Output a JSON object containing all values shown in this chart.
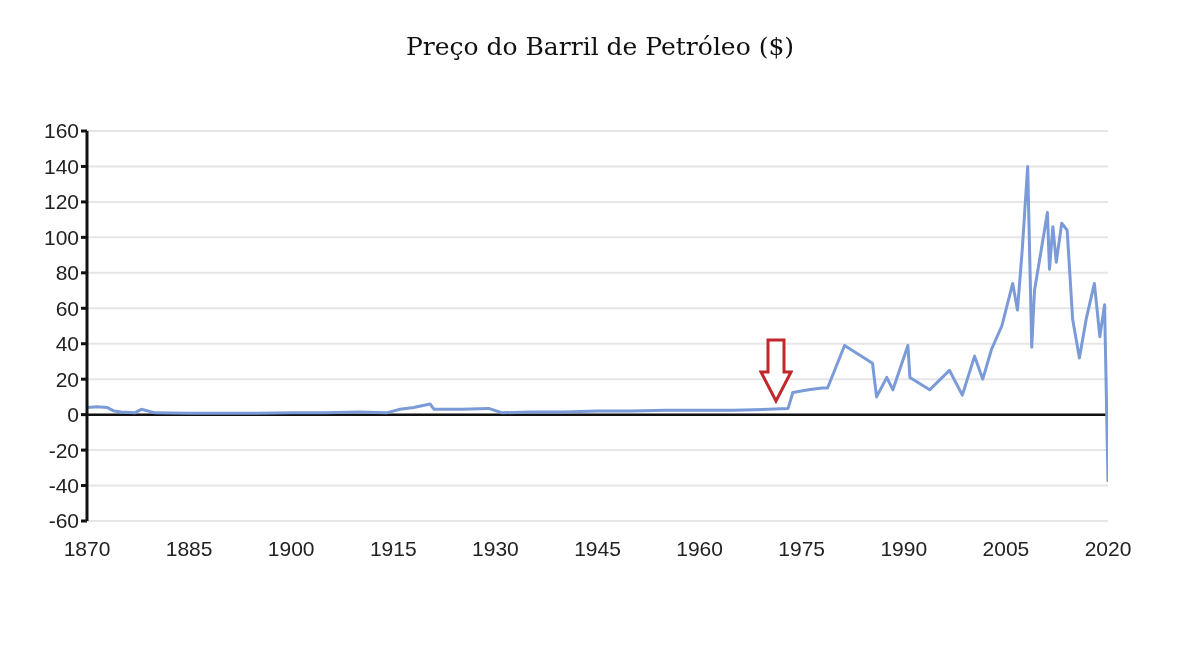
{
  "chart_data": {
    "type": "line",
    "title": "Preço do Barril de Petróleo ($)",
    "series": [
      {
        "color": "#7b9bd8",
        "x": [
          1870,
          1871.5,
          1873,
          1874,
          1875,
          1877,
          1878,
          1880,
          1885,
          1890,
          1895,
          1900,
          1905,
          1910,
          1914,
          1916,
          1918,
          1920.4,
          1921,
          1925,
          1929,
          1931,
          1935,
          1940,
          1945,
          1950,
          1955,
          1960,
          1965,
          1970,
          1973,
          1973.7,
          1976,
          1978,
          1978.8,
          1981.3,
          1985.4,
          1986,
          1987.5,
          1988.4,
          1990.6,
          1990.9,
          1993.8,
          1996.7,
          1998.6,
          2000.4,
          2001.6,
          2002.9,
          2004.4,
          2006,
          2006.7,
          2007.4,
          2008.2,
          2008.8,
          2009.2,
          2011.1,
          2011.4,
          2011.9,
          2012.4,
          2013.2,
          2014,
          2014.8,
          2015.8,
          2016.8,
          2018,
          2018.8,
          2019.5,
          2020
        ],
        "values": [
          4,
          4.5,
          4,
          2,
          1.5,
          1,
          3,
          1,
          0.8,
          0.8,
          0.8,
          1,
          1,
          1.5,
          1,
          3,
          4,
          6,
          3,
          3,
          3.5,
          1,
          1.5,
          1.5,
          2,
          2,
          2.5,
          2.5,
          2.5,
          3,
          3.5,
          12.5,
          14,
          15,
          15,
          39,
          29,
          10,
          21,
          14,
          39,
          21,
          14,
          25,
          11,
          33,
          20,
          37,
          50,
          74,
          59,
          93,
          140,
          38,
          70,
          114,
          82,
          106,
          86,
          108,
          104,
          54,
          32,
          54,
          74,
          44,
          62,
          -38
        ]
      }
    ],
    "xlim": [
      1870,
      2020
    ],
    "xticks": [
      1870,
      1885,
      1900,
      1915,
      1930,
      1945,
      1960,
      1975,
      1990,
      2005,
      2020
    ],
    "ylim": [
      -60,
      160
    ],
    "yticks": [
      -60,
      -40,
      -20,
      0,
      20,
      40,
      60,
      80,
      100,
      120,
      140,
      160
    ],
    "grid": "y",
    "legend": false,
    "marker": "none",
    "line_style": "solid"
  }
}
